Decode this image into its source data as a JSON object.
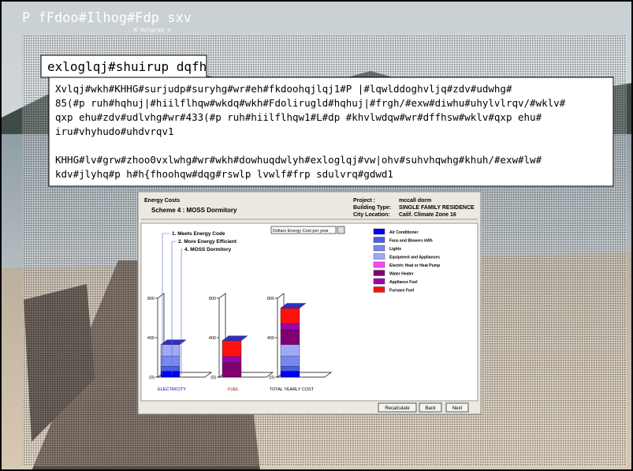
{
  "slide": {
    "title": "P fFdoo#Ilhog#Fdp sxv",
    "subtitle": "K holgrup v",
    "heading": "exloglqj#shuirup dqfh",
    "paragraphs": [
      [
        "Xvlqj#wkh#KHHG#surjudp#suryhg#wr#eh#fkdoohqjlqj1#P |#lqwlddoghvljq#zdv#udwhg#",
        "85(#p ruh#hqhuj|#hiilflhqw#wkdq#wkh#Fdolirugld#hqhuj|#frgh/#exw#diwhu#uhylvlrqv/#wklv#",
        "qxp ehu#zdv#udlvhg#wr#433(#p ruh#hiilflhqw1#L#dp #khvlwdqw#wr#dffhsw#wklv#qxp ehu#",
        "iru#vhyhudo#uhdvrqv1"
      ],
      [
        "KHHG#lv#grw#zhoo0vxlwhg#wr#wkh#dowhuqdwlyh#exloglqj#vw|ohv#suhvhqwhg#khuh/#exw#lw#",
        "kdv#jlyhq#p h#h{fhoohqw#dqg#rswlp lvwlf#frp sdulvrq#gdwd1"
      ]
    ]
  },
  "app": {
    "header_title": "Energy Costs",
    "scheme": "Scheme 4 : MOSS Dormitory",
    "info": [
      [
        "Project :",
        "mccall dorm"
      ],
      [
        "Building Type:",
        "SINGLE FAMILY RESIDENCE"
      ],
      [
        "City Location:",
        "Calif. Climate Zone 16"
      ]
    ],
    "dropdown": "Dollars Energy Cost per year",
    "buttons": [
      "Recalculate",
      "Back",
      "Next"
    ],
    "chart_data": {
      "type": "stacked-bar",
      "scheme_labels": [
        "1. Meets Energy Code",
        "2. More Energy Efficient",
        "4. MOSS Dormitory"
      ],
      "categories": [
        "ELECTRICITY",
        "FUEL",
        "TOTAL YEARLY COST"
      ],
      "ylim": [
        0,
        800
      ],
      "yticks": [
        {
          "value": 0,
          "label": "(0)"
        },
        400,
        800
      ],
      "series": [
        {
          "name": "Air Conditioner",
          "color": "#0000ee",
          "values": [
            60,
            0,
            60
          ]
        },
        {
          "name": "Fans and Blowers kWh",
          "color": "#4a5ee8",
          "values": [
            50,
            0,
            50
          ]
        },
        {
          "name": "Lights",
          "color": "#7888f0",
          "values": [
            100,
            0,
            100
          ]
        },
        {
          "name": "Equipment and Appliances",
          "color": "#a0a8f8",
          "values": [
            120,
            0,
            120
          ]
        },
        {
          "name": "Electric Heat or Heat Pump",
          "color": "#ff44ff",
          "values": [
            0,
            0,
            0
          ]
        },
        {
          "name": "Water Heater",
          "color": "#800070",
          "values": [
            0,
            150,
            150
          ]
        },
        {
          "name": "Appliance Fuel",
          "color": "#a000b0",
          "values": [
            0,
            60,
            60
          ]
        },
        {
          "name": "Furnace Fuel",
          "color": "#ff1010",
          "values": [
            0,
            160,
            160
          ]
        }
      ]
    }
  }
}
